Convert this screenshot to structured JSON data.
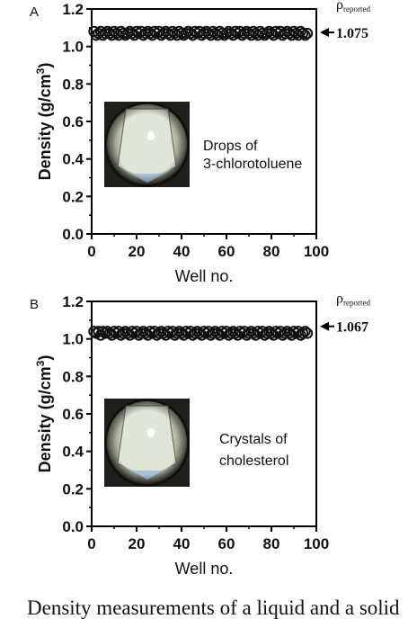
{
  "caption": "Density measurements of a liquid and a solid",
  "chart_data": [
    {
      "type": "scatter",
      "panel_label": "A",
      "xlabel": "Well no.",
      "ylabel": "Density (g/cm",
      "ylabel_superscript": "3",
      "ylabel_close": ")",
      "xlim": [
        0,
        100
      ],
      "ylim": [
        0,
        1.2
      ],
      "xticks": [
        "0",
        "20",
        "40",
        "60",
        "80",
        "100"
      ],
      "yticks": [
        "0.0",
        "0.2",
        "0.4",
        "0.6",
        "0.8",
        "1.0",
        "1.2"
      ],
      "inset_text": [
        "Drops of",
        "3-chlorotoluene"
      ],
      "reported_label_rho": "ρ",
      "reported_label_sub": "reported",
      "reported_value": "1.075",
      "reported_y": 1.075,
      "marker_color": "#111111",
      "series": [
        {
          "values_x": [
            1,
            2,
            3,
            4,
            5,
            6,
            7,
            8,
            9,
            10,
            11,
            12,
            13,
            14,
            15,
            16,
            17,
            18,
            19,
            20,
            21,
            22,
            23,
            24,
            25,
            26,
            27,
            28,
            29,
            30,
            31,
            32,
            33,
            34,
            35,
            36,
            37,
            38,
            39,
            40,
            41,
            42,
            43,
            44,
            45,
            46,
            47,
            48,
            49,
            50,
            51,
            52,
            53,
            54,
            55,
            56,
            57,
            58,
            59,
            60,
            61,
            62,
            63,
            64,
            65,
            66,
            67,
            68,
            69,
            70,
            71,
            72,
            73,
            74,
            75,
            76,
            77,
            78,
            79,
            80,
            81,
            82,
            83,
            84,
            85,
            86,
            87,
            88,
            89,
            90,
            91,
            92,
            93,
            94,
            95,
            96
          ],
          "values_y": [
            1.08,
            1.06,
            1.07,
            1.08,
            1.06,
            1.07,
            1.08,
            1.07,
            1.06,
            1.08,
            1.07,
            1.06,
            1.08,
            1.07,
            1.06,
            1.07,
            1.08,
            1.07,
            1.06,
            1.08,
            1.07,
            1.08,
            1.06,
            1.07,
            1.08,
            1.07,
            1.06,
            1.08,
            1.07,
            1.08,
            1.06,
            1.07,
            1.08,
            1.07,
            1.06,
            1.08,
            1.07,
            1.06,
            1.08,
            1.07,
            1.06,
            1.07,
            1.08,
            1.07,
            1.06,
            1.08,
            1.07,
            1.08,
            1.06,
            1.07,
            1.08,
            1.07,
            1.06,
            1.08,
            1.07,
            1.06,
            1.08,
            1.07,
            1.06,
            1.07,
            1.08,
            1.07,
            1.06,
            1.08,
            1.07,
            1.08,
            1.06,
            1.07,
            1.08,
            1.07,
            1.06,
            1.08,
            1.07,
            1.06,
            1.08,
            1.07,
            1.06,
            1.07,
            1.08,
            1.07,
            1.06,
            1.08,
            1.07,
            1.08,
            1.06,
            1.07,
            1.08,
            1.07,
            1.06,
            1.08,
            1.07,
            1.06,
            1.08,
            1.07,
            1.06,
            1.07
          ]
        }
      ]
    },
    {
      "type": "scatter",
      "panel_label": "B",
      "xlabel": "Well no.",
      "ylabel": "Density (g/cm",
      "ylabel_superscript": "3",
      "ylabel_close": ")",
      "xlim": [
        0,
        100
      ],
      "ylim": [
        0,
        1.2
      ],
      "xticks": [
        "0",
        "20",
        "40",
        "60",
        "80",
        "100"
      ],
      "yticks": [
        "0.0",
        "0.2",
        "0.4",
        "0.6",
        "0.8",
        "1.0",
        "1.2"
      ],
      "inset_text": [
        "Crystals of",
        "cholesterol"
      ],
      "reported_label_rho": "ρ",
      "reported_label_sub": "reported",
      "reported_value": "1.067",
      "reported_y": 1.067,
      "marker_color": "#111111",
      "series": [
        {
          "values_x": [
            1,
            2,
            3,
            4,
            5,
            6,
            7,
            8,
            9,
            10,
            11,
            12,
            13,
            14,
            15,
            16,
            17,
            18,
            19,
            20,
            21,
            22,
            23,
            24,
            25,
            26,
            27,
            28,
            29,
            30,
            31,
            32,
            33,
            34,
            35,
            36,
            37,
            38,
            39,
            40,
            41,
            42,
            43,
            44,
            45,
            46,
            47,
            48,
            49,
            50,
            51,
            52,
            53,
            54,
            55,
            56,
            57,
            58,
            59,
            60,
            61,
            62,
            63,
            64,
            65,
            66,
            67,
            68,
            69,
            70,
            71,
            72,
            73,
            74,
            75,
            76,
            77,
            78,
            79,
            80,
            81,
            82,
            83,
            84,
            85,
            86,
            87,
            88,
            89,
            90,
            91,
            92,
            93,
            94,
            95,
            96
          ],
          "values_y": [
            1.04,
            1.03,
            1.04,
            1.02,
            1.04,
            1.03,
            1.04,
            1.03,
            1.02,
            1.04,
            1.03,
            1.04,
            1.02,
            1.03,
            1.04,
            1.03,
            1.02,
            1.04,
            1.03,
            1.04,
            1.02,
            1.03,
            1.04,
            1.03,
            1.02,
            1.04,
            1.03,
            1.04,
            1.02,
            1.03,
            1.04,
            1.03,
            1.02,
            1.04,
            1.03,
            1.04,
            1.02,
            1.03,
            1.04,
            1.03,
            1.02,
            1.04,
            1.03,
            1.04,
            1.02,
            1.03,
            1.04,
            1.03,
            1.02,
            1.04,
            1.03,
            1.04,
            1.02,
            1.03,
            1.04,
            1.03,
            1.02,
            1.04,
            1.03,
            1.04,
            1.02,
            1.03,
            1.04,
            1.03,
            1.02,
            1.04,
            1.03,
            1.04,
            1.02,
            1.03,
            1.04,
            1.03,
            1.02,
            1.04,
            1.03,
            1.04,
            1.02,
            1.03,
            1.04,
            1.03,
            1.02,
            1.04,
            1.03,
            1.04,
            1.02,
            1.03,
            1.04,
            1.03,
            1.02,
            1.04,
            1.03,
            1.04,
            1.02,
            1.03,
            1.04,
            1.03
          ]
        }
      ]
    }
  ]
}
